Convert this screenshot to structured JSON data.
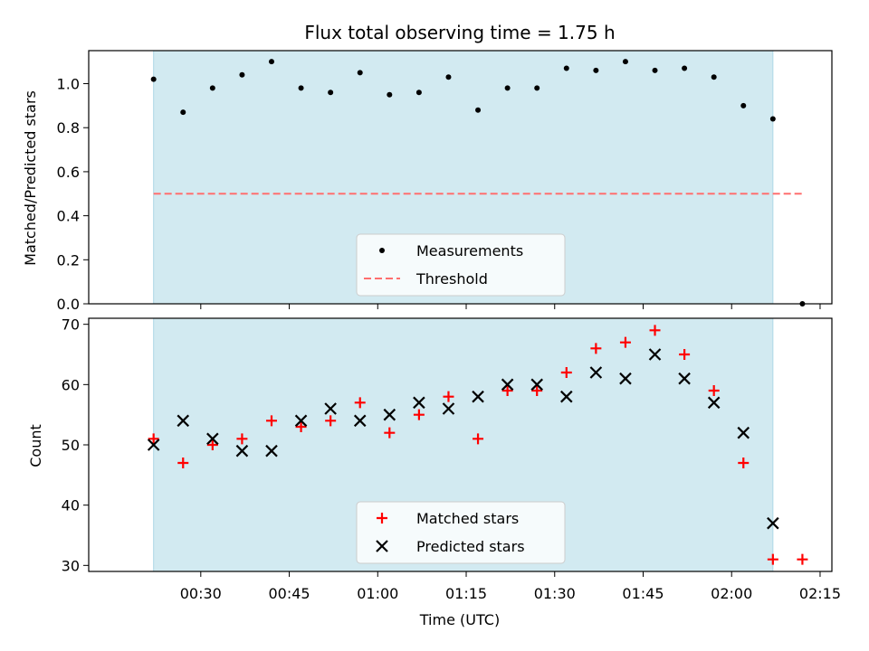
{
  "chart_data": [
    {
      "type": "scatter",
      "title": "Flux total observing time = 1.75 h",
      "ylabel": "Matched/Predicted stars",
      "xlabel": "",
      "ylim": [
        0,
        1.15
      ],
      "yticks": [
        "0.0",
        "0.2",
        "0.4",
        "0.6",
        "0.8",
        "1.0"
      ],
      "shaded_interval": [
        "00:22",
        "02:07"
      ],
      "shade_color": "#add8e6",
      "legend_position": "lower-center",
      "series": [
        {
          "name": "Measurements",
          "marker": "dot",
          "color": "#000000",
          "x": [
            "00:22",
            "00:27",
            "00:32",
            "00:37",
            "00:42",
            "00:47",
            "00:52",
            "00:57",
            "01:02",
            "01:07",
            "01:12",
            "01:17",
            "01:22",
            "01:27",
            "01:32",
            "01:37",
            "01:42",
            "01:47",
            "01:52",
            "01:57",
            "02:02",
            "02:07",
            "02:12"
          ],
          "values": [
            1.02,
            0.87,
            0.98,
            1.04,
            1.1,
            0.98,
            0.96,
            1.05,
            0.95,
            0.96,
            1.03,
            0.88,
            0.98,
            0.98,
            1.07,
            1.06,
            1.1,
            1.06,
            1.07,
            1.03,
            0.9,
            0.84,
            0.0
          ]
        },
        {
          "name": "Threshold",
          "marker": "dashed-line",
          "color": "#ff6f6f",
          "x": [
            "00:22",
            "02:12"
          ],
          "values": [
            0.5,
            0.5
          ]
        }
      ]
    },
    {
      "type": "scatter",
      "title": "",
      "ylabel": "Count",
      "xlabel": "Time (UTC)",
      "ylim": [
        29,
        71
      ],
      "yticks": [
        "30",
        "40",
        "50",
        "60",
        "70"
      ],
      "xticks": [
        "00:30",
        "00:45",
        "01:00",
        "01:15",
        "01:30",
        "01:45",
        "02:00",
        "02:15"
      ],
      "shaded_interval": [
        "00:22",
        "02:07"
      ],
      "shade_color": "#add8e6",
      "legend_position": "lower-center",
      "series": [
        {
          "name": "Matched stars",
          "marker": "plus",
          "color": "#ff0000",
          "x": [
            "00:22",
            "00:27",
            "00:32",
            "00:37",
            "00:42",
            "00:47",
            "00:52",
            "00:57",
            "01:02",
            "01:07",
            "01:12",
            "01:17",
            "01:22",
            "01:27",
            "01:32",
            "01:37",
            "01:42",
            "01:47",
            "01:52",
            "01:57",
            "02:02",
            "02:07",
            "02:12"
          ],
          "values": [
            51,
            47,
            50,
            51,
            54,
            53,
            54,
            57,
            52,
            55,
            58,
            51,
            59,
            59,
            62,
            66,
            67,
            69,
            65,
            59,
            47,
            31,
            31
          ]
        },
        {
          "name": "Predicted stars",
          "marker": "x",
          "color": "#000000",
          "x": [
            "00:22",
            "00:27",
            "00:32",
            "00:37",
            "00:42",
            "00:47",
            "00:52",
            "00:57",
            "01:02",
            "01:07",
            "01:12",
            "01:17",
            "01:22",
            "01:27",
            "01:32",
            "01:37",
            "01:42",
            "01:47",
            "01:52",
            "01:57",
            "02:02",
            "02:07"
          ],
          "values": [
            50,
            54,
            51,
            49,
            49,
            54,
            56,
            54,
            55,
            57,
            56,
            58,
            60,
            60,
            58,
            62,
            61,
            65,
            61,
            57,
            52,
            37
          ]
        }
      ]
    }
  ]
}
